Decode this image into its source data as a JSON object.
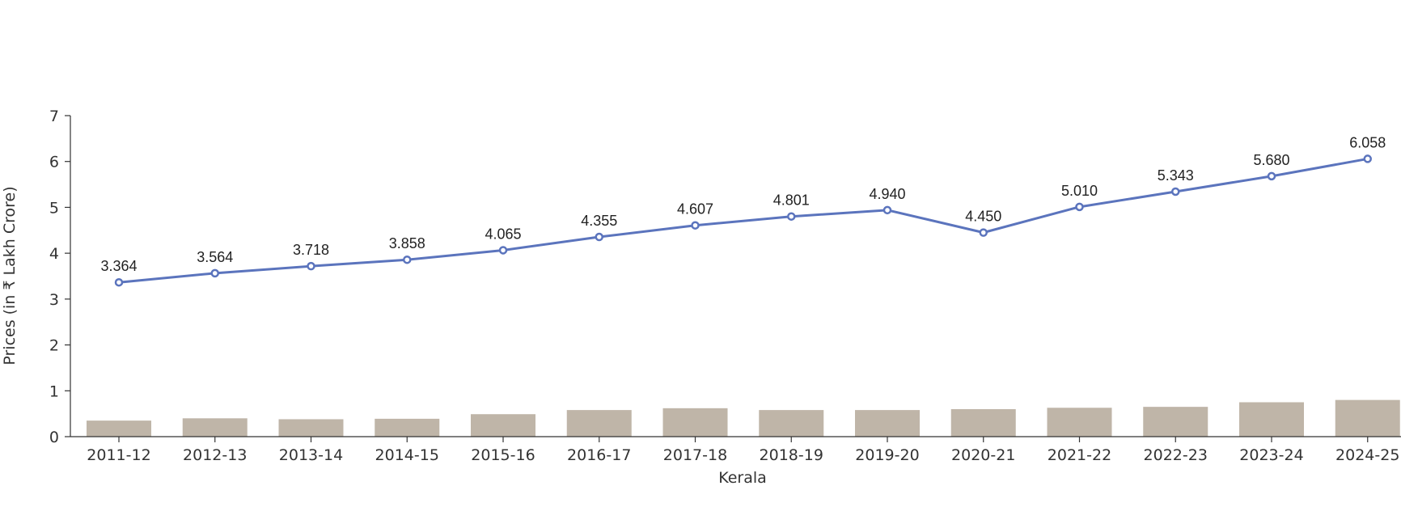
{
  "chart_data": {
    "type": "line",
    "categories": [
      "2011-12",
      "2012-13",
      "2013-14",
      "2014-15",
      "2015-16",
      "2016-17",
      "2017-18",
      "2018-19",
      "2019-20",
      "2020-21",
      "2021-22",
      "2022-23",
      "2023-24",
      "2024-25"
    ],
    "series": [
      {
        "type": "line",
        "values": [
          3.364,
          3.564,
          3.718,
          3.858,
          4.065,
          4.355,
          4.607,
          4.801,
          4.94,
          4.45,
          5.01,
          5.343,
          5.68,
          6.058
        ],
        "labels": [
          "3.364",
          "3.564",
          "3.718",
          "3.858",
          "4.065",
          "4.355",
          "4.607",
          "4.801",
          "4.940",
          "4.450",
          "5.010",
          "5.343",
          "5.680",
          "6.058"
        ],
        "color": "#5b74bd"
      },
      {
        "type": "bar",
        "values": [
          0.35,
          0.4,
          0.38,
          0.39,
          0.49,
          0.58,
          0.62,
          0.58,
          0.58,
          0.6,
          0.63,
          0.65,
          0.75,
          0.8
        ],
        "color": "#bfb5a8"
      }
    ],
    "xlabel": "Kerala",
    "ylabel": "Prices (in ₹ Lakh Crore)",
    "ylim": [
      0,
      7
    ],
    "yticks": [
      "0",
      "1",
      "2",
      "3",
      "4",
      "5",
      "6",
      "7"
    ],
    "grid": false,
    "legend": "none"
  }
}
